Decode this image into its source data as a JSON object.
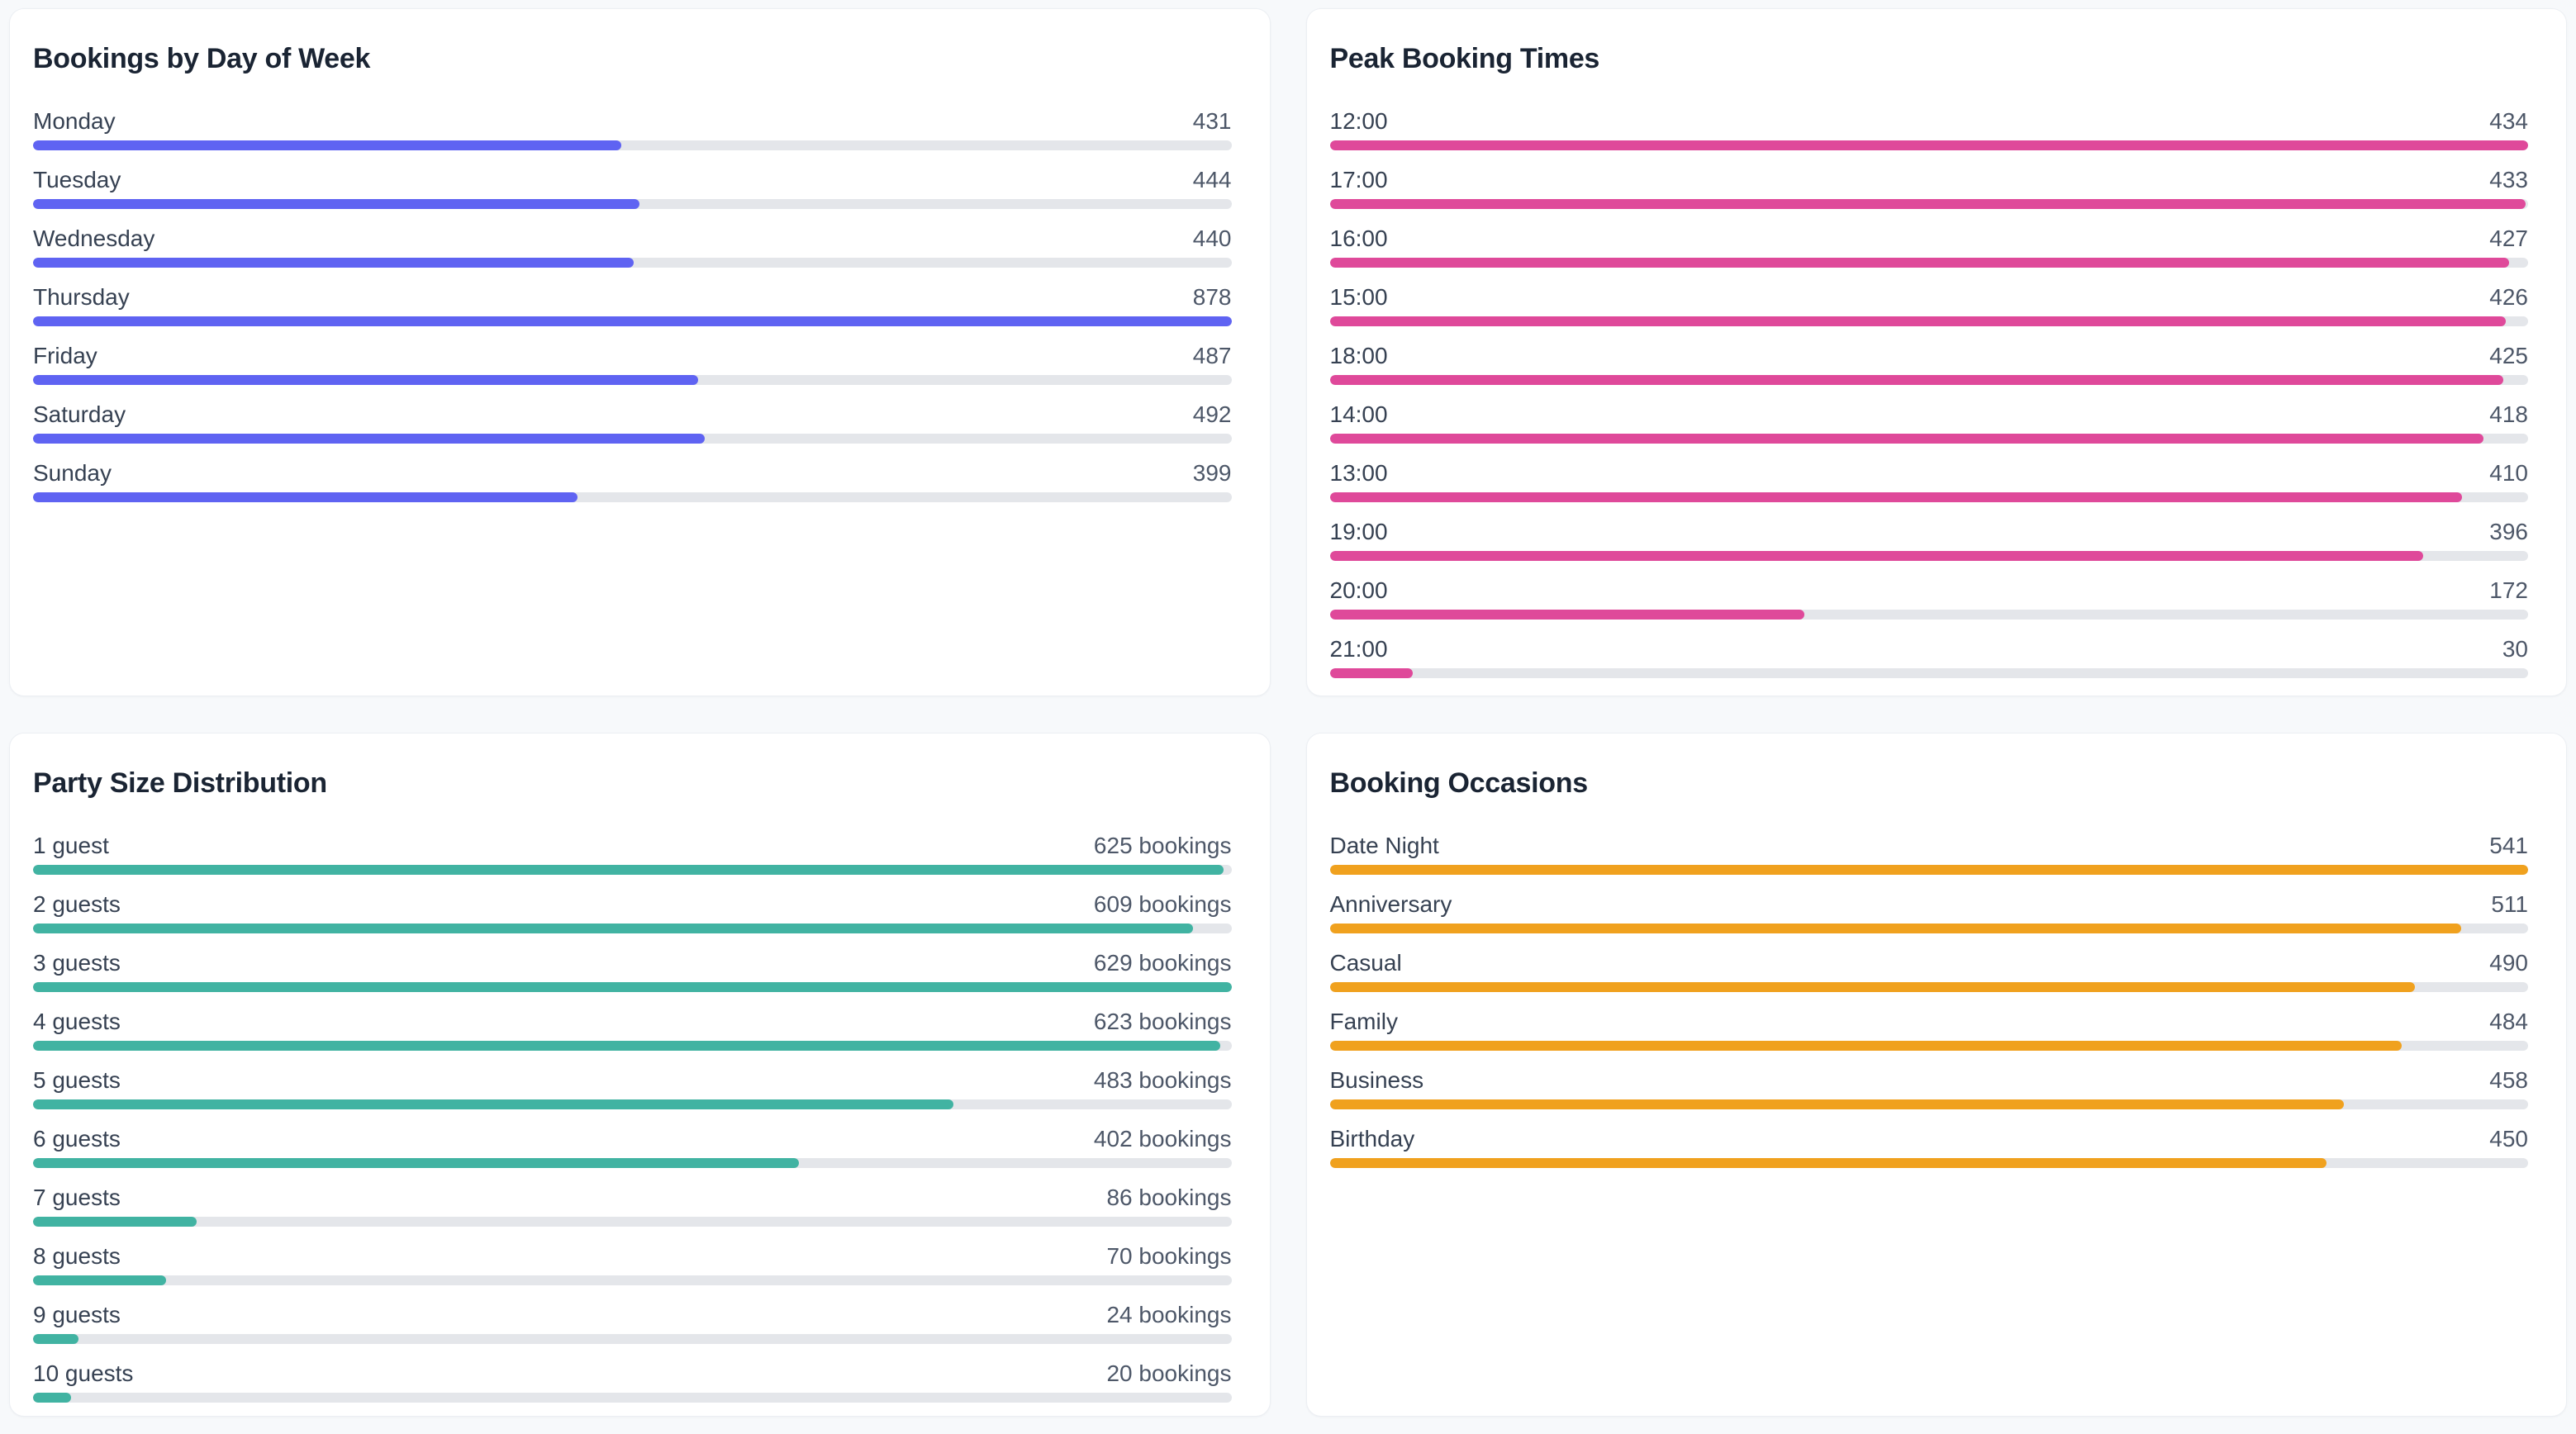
{
  "page": {
    "background_color": "#F7F9FB",
    "card_background": "#FFFFFF",
    "track_color": "#E4E6EA"
  },
  "cards": [
    {
      "title": "Bookings by Day of Week",
      "bar_color": "#5F63F2",
      "rows": [
        {
          "label": "Monday",
          "value": 431,
          "display": "431"
        },
        {
          "label": "Tuesday",
          "value": 444,
          "display": "444"
        },
        {
          "label": "Wednesday",
          "value": 440,
          "display": "440"
        },
        {
          "label": "Thursday",
          "value": 878,
          "display": "878"
        },
        {
          "label": "Friday",
          "value": 487,
          "display": "487"
        },
        {
          "label": "Saturday",
          "value": 492,
          "display": "492"
        },
        {
          "label": "Sunday",
          "value": 399,
          "display": "399"
        }
      ]
    },
    {
      "title": "Peak Booking Times",
      "bar_color": "#DF499A",
      "rows": [
        {
          "label": "12:00",
          "value": 434,
          "display": "434"
        },
        {
          "label": "17:00",
          "value": 433,
          "display": "433"
        },
        {
          "label": "16:00",
          "value": 427,
          "display": "427"
        },
        {
          "label": "15:00",
          "value": 426,
          "display": "426"
        },
        {
          "label": "18:00",
          "value": 425,
          "display": "425"
        },
        {
          "label": "14:00",
          "value": 418,
          "display": "418"
        },
        {
          "label": "13:00",
          "value": 410,
          "display": "410"
        },
        {
          "label": "19:00",
          "value": 396,
          "display": "396"
        },
        {
          "label": "20:00",
          "value": 172,
          "display": "172"
        },
        {
          "label": "21:00",
          "value": 30,
          "display": "30"
        }
      ]
    },
    {
      "title": "Party Size Distribution",
      "bar_color": "#41B3A2",
      "rows": [
        {
          "label": "1 guest",
          "value": 625,
          "display": "625 bookings"
        },
        {
          "label": "2 guests",
          "value": 609,
          "display": "609 bookings"
        },
        {
          "label": "3 guests",
          "value": 629,
          "display": "629 bookings"
        },
        {
          "label": "4 guests",
          "value": 623,
          "display": "623 bookings"
        },
        {
          "label": "5 guests",
          "value": 483,
          "display": "483 bookings"
        },
        {
          "label": "6 guests",
          "value": 402,
          "display": "402 bookings"
        },
        {
          "label": "7 guests",
          "value": 86,
          "display": "86 bookings"
        },
        {
          "label": "8 guests",
          "value": 70,
          "display": "70 bookings"
        },
        {
          "label": "9 guests",
          "value": 24,
          "display": "24 bookings"
        },
        {
          "label": "10 guests",
          "value": 20,
          "display": "20 bookings"
        }
      ]
    },
    {
      "title": "Booking Occasions",
      "bar_color": "#F0A11E",
      "rows": [
        {
          "label": "Date Night",
          "value": 541,
          "display": "541"
        },
        {
          "label": "Anniversary",
          "value": 511,
          "display": "511"
        },
        {
          "label": "Casual",
          "value": 490,
          "display": "490"
        },
        {
          "label": "Family",
          "value": 484,
          "display": "484"
        },
        {
          "label": "Business",
          "value": 458,
          "display": "458"
        },
        {
          "label": "Birthday",
          "value": 450,
          "display": "450"
        }
      ]
    }
  ],
  "chart_data": [
    {
      "type": "bar",
      "orientation": "horizontal",
      "title": "Bookings by Day of Week",
      "categories": [
        "Monday",
        "Tuesday",
        "Wednesday",
        "Thursday",
        "Friday",
        "Saturday",
        "Sunday"
      ],
      "values": [
        431,
        444,
        440,
        878,
        487,
        492,
        399
      ],
      "xlim": [
        0,
        878
      ],
      "bar_color": "#5F63F2",
      "grid": false,
      "legend": false,
      "value_labels": "right-aligned"
    },
    {
      "type": "bar",
      "orientation": "horizontal",
      "title": "Peak Booking Times",
      "categories": [
        "12:00",
        "17:00",
        "16:00",
        "15:00",
        "18:00",
        "14:00",
        "13:00",
        "19:00",
        "20:00",
        "21:00"
      ],
      "values": [
        434,
        433,
        427,
        426,
        425,
        418,
        410,
        396,
        172,
        30
      ],
      "xlim": [
        0,
        434
      ],
      "bar_color": "#DF499A",
      "grid": false,
      "legend": false,
      "value_labels": "right-aligned"
    },
    {
      "type": "bar",
      "orientation": "horizontal",
      "title": "Party Size Distribution",
      "categories": [
        "1 guest",
        "2 guests",
        "3 guests",
        "4 guests",
        "5 guests",
        "6 guests",
        "7 guests",
        "8 guests",
        "9 guests",
        "10 guests"
      ],
      "values": [
        625,
        609,
        629,
        623,
        483,
        402,
        86,
        70,
        24,
        20
      ],
      "value_suffix": " bookings",
      "xlim": [
        0,
        629
      ],
      "bar_color": "#41B3A2",
      "grid": false,
      "legend": false,
      "value_labels": "right-aligned"
    },
    {
      "type": "bar",
      "orientation": "horizontal",
      "title": "Booking Occasions",
      "categories": [
        "Date Night",
        "Anniversary",
        "Casual",
        "Family",
        "Business",
        "Birthday"
      ],
      "values": [
        541,
        511,
        490,
        484,
        458,
        450
      ],
      "xlim": [
        0,
        541
      ],
      "bar_color": "#F0A11E",
      "grid": false,
      "legend": false,
      "value_labels": "right-aligned"
    }
  ]
}
